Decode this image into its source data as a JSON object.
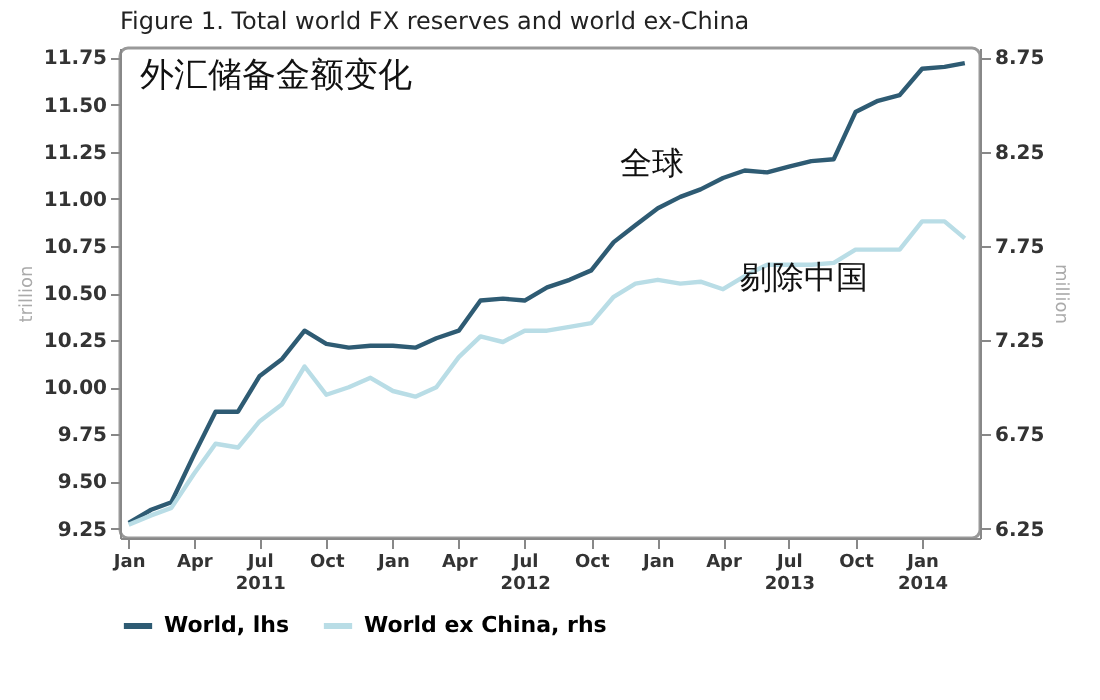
{
  "chart_data": {
    "type": "line",
    "title": "Figure 1. Total world FX reserves and world ex-China",
    "ylabel": "trillion",
    "y2label": "million",
    "x": [
      "2011-01",
      "2011-02",
      "2011-03",
      "2011-04",
      "2011-05",
      "2011-06",
      "2011-07",
      "2011-08",
      "2011-09",
      "2011-10",
      "2011-11",
      "2011-12",
      "2012-01",
      "2012-02",
      "2012-03",
      "2012-04",
      "2012-05",
      "2012-06",
      "2012-07",
      "2012-08",
      "2012-09",
      "2012-10",
      "2012-11",
      "2012-12",
      "2013-01",
      "2013-02",
      "2013-03",
      "2013-04",
      "2013-05",
      "2013-06",
      "2013-07",
      "2013-08",
      "2013-09",
      "2013-10",
      "2013-11",
      "2013-12",
      "2014-01",
      "2014-02",
      "2014-03"
    ],
    "series": [
      {
        "name": "World, lhs",
        "color": "#2e5b73",
        "axis": "y",
        "values": [
          9.28,
          9.35,
          9.39,
          9.64,
          9.87,
          9.87,
          10.06,
          10.15,
          10.3,
          10.23,
          10.21,
          10.22,
          10.22,
          10.21,
          10.26,
          10.3,
          10.46,
          10.47,
          10.46,
          10.53,
          10.57,
          10.62,
          10.77,
          10.86,
          10.95,
          11.01,
          11.05,
          11.11,
          11.15,
          11.14,
          11.17,
          11.2,
          11.21,
          11.46,
          11.52,
          11.55,
          11.69,
          11.7,
          11.72
        ]
      },
      {
        "name": "World ex China, rhs",
        "color": "#b9dde6",
        "axis": "y2",
        "values": [
          6.27,
          6.32,
          6.36,
          6.54,
          6.7,
          6.68,
          6.82,
          6.91,
          7.11,
          6.96,
          7.0,
          7.05,
          6.98,
          6.95,
          7.0,
          7.16,
          7.27,
          7.24,
          7.3,
          7.3,
          7.32,
          7.34,
          7.48,
          7.55,
          7.57,
          7.55,
          7.56,
          7.52,
          7.59,
          7.65,
          7.65,
          7.65,
          7.66,
          7.73,
          7.73,
          7.73,
          7.88,
          7.88,
          7.79
        ]
      }
    ],
    "xlim": [
      "2010-12-20",
      "2014-03-22"
    ],
    "xticks": [
      {
        "value": "2011-01",
        "label": "Jan"
      },
      {
        "value": "2011-04",
        "label": "Apr"
      },
      {
        "value": "2011-07",
        "label": "Jul\n2011"
      },
      {
        "value": "2011-10",
        "label": "Oct"
      },
      {
        "value": "2012-01",
        "label": "Jan"
      },
      {
        "value": "2012-04",
        "label": "Apr"
      },
      {
        "value": "2012-07",
        "label": "Jul\n2012"
      },
      {
        "value": "2012-10",
        "label": "Oct"
      },
      {
        "value": "2013-01",
        "label": "Jan"
      },
      {
        "value": "2013-04",
        "label": "Apr"
      },
      {
        "value": "2013-07",
        "label": "Jul\n2013"
      },
      {
        "value": "2013-10",
        "label": "Oct"
      },
      {
        "value": "2014-01",
        "label": "Jan\n2014"
      }
    ],
    "ylim": [
      9.2,
      11.8
    ],
    "yticks": [
      9.25,
      {
        "value": 9.5,
        "label": "9.50"
      },
      9.75,
      {
        "value": 10,
        "label": "10.00"
      },
      10.25,
      {
        "value": 10.5,
        "label": "10.50"
      },
      10.75,
      {
        "value": 11,
        "label": "11.00"
      },
      11.25,
      {
        "value": 11.5,
        "label": "11.50"
      },
      11.75
    ],
    "y2lim": [
      6.2,
      8.8
    ],
    "y2ticks": [
      6.25,
      6.75,
      7.25,
      7.75,
      8.25,
      8.75
    ],
    "annotations": [
      "外汇储备金额变化",
      "全球",
      "剔除中国"
    ],
    "legend": "bottom left",
    "grid": false,
    "marker": "none",
    "line_style": "solid"
  }
}
